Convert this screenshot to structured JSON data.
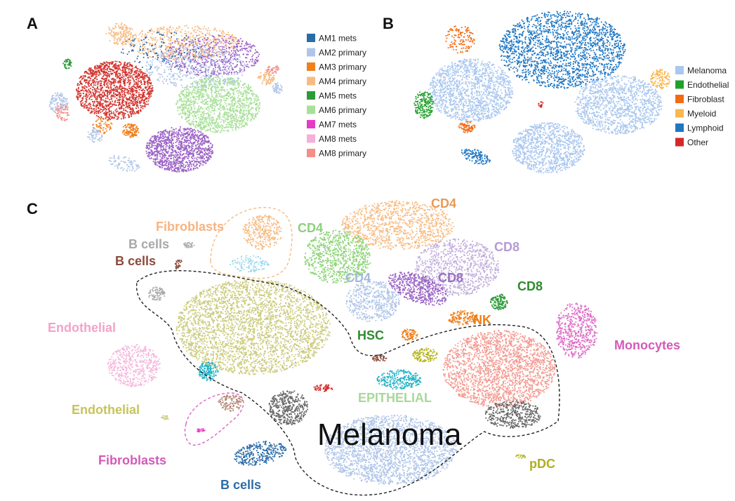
{
  "chart_data": [
    {
      "type": "scatter",
      "panel": "A",
      "legend": [
        {
          "label": "AM1 mets",
          "color": "#2b6ca8"
        },
        {
          "label": "AM2 primary",
          "color": "#b0c6e8"
        },
        {
          "label": "AM3 primary",
          "color": "#f07f1c"
        },
        {
          "label": "AM4 primary",
          "color": "#f7bb82"
        },
        {
          "label": "AM5 mets",
          "color": "#2e9b39"
        },
        {
          "label": "AM6 primary",
          "color": "#a8e098"
        },
        {
          "label": "AM7 mets",
          "color": "#e63bc6"
        },
        {
          "label": "AM8 mets",
          "color": "#f5b0d8"
        },
        {
          "label": "AM8 primary",
          "color": "#f58e86"
        }
      ]
    },
    {
      "type": "scatter",
      "panel": "B",
      "legend": [
        {
          "label": "Melanoma",
          "color": "#aac7ef"
        },
        {
          "label": "Endothelial",
          "color": "#22a02c"
        },
        {
          "label": "Fibroblast",
          "color": "#f26a12"
        },
        {
          "label": "Myeloid",
          "color": "#fbb64f"
        },
        {
          "label": "Lymphoid",
          "color": "#1f77c4"
        },
        {
          "label": "Other",
          "color": "#d62728"
        }
      ]
    },
    {
      "type": "scatter",
      "panel": "C",
      "labels": [
        {
          "text": "Fibroblasts",
          "color": "#f7b482"
        },
        {
          "text": "CD4",
          "color": "#e89a55"
        },
        {
          "text": "CD4",
          "color": "#8fcf7c"
        },
        {
          "text": "B cells",
          "color": "#a8a8a8"
        },
        {
          "text": "B cells",
          "color": "#8c4b3c"
        },
        {
          "text": "CD8",
          "color": "#b59ad2"
        },
        {
          "text": "CD4",
          "color": "#a4b9dc"
        },
        {
          "text": "CD8",
          "color": "#9b6fc2"
        },
        {
          "text": "CD8",
          "color": "#2e8b2e"
        },
        {
          "text": "Endothelial",
          "color": "#f2a3c9"
        },
        {
          "text": "NK",
          "color": "#ef7d12"
        },
        {
          "text": "HSC",
          "color": "#2e8b2e"
        },
        {
          "text": "Monocytes",
          "color": "#d45ab8"
        },
        {
          "text": "EPITHELIAL",
          "color": "#a8d89a"
        },
        {
          "text": "Endothelial",
          "color": "#c6c45a"
        },
        {
          "text": "Melanoma",
          "color": "#111111"
        },
        {
          "text": "Fibroblasts",
          "color": "#d45ab8"
        },
        {
          "text": "pDC",
          "color": "#b0ae22"
        },
        {
          "text": "B cells",
          "color": "#2b6ca8"
        }
      ]
    }
  ],
  "panels": {
    "a": "A",
    "b": "B",
    "c": "C"
  }
}
